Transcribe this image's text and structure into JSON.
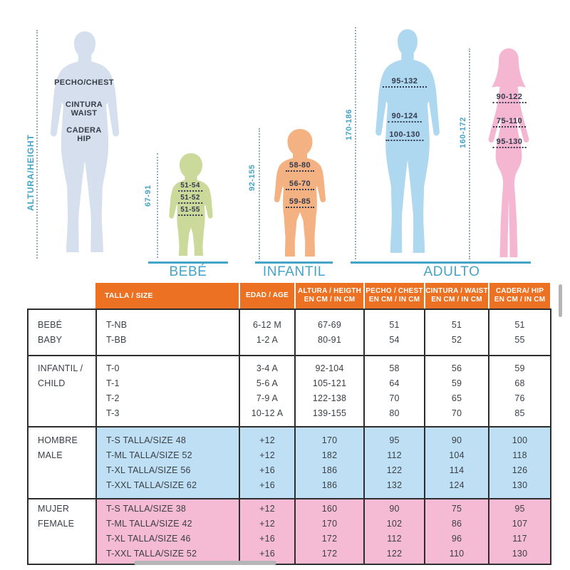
{
  "colors": {
    "teal": "#43a4c7",
    "header_orange": "#ec7123",
    "male_row_blue": "#bfe0f4",
    "female_row_pink": "#f5bad4",
    "reference_silhouette": "#d6dfed",
    "baby_silhouette": "#cbd99a",
    "child_silhouette": "#f4b181",
    "adult_male_silhouette": "#aed7f0",
    "adult_female_silhouette": "#f5b6d1",
    "annotation_navy": "#333a4d",
    "table_border": "#2d2d2d",
    "dotted_line_gray": "#9aa9bd",
    "scrollbar_gray": "#b5b5b5"
  },
  "figures": {
    "height_axis_label": "ALTURA/HEIGHT",
    "reference": {
      "chest_label": "PECHO/CHEST",
      "waist_label_1": "CINTURA",
      "waist_label_2": "WAIST",
      "hip_label_1": "CADERA",
      "hip_label_2": "HIP"
    },
    "baby": {
      "height_range": "67-91",
      "chest": "51-54",
      "waist": "51-52",
      "hip": "51-55"
    },
    "child": {
      "height_range": "92-155",
      "chest": "58-80",
      "waist": "56-70",
      "hip": "59-85"
    },
    "adult_male": {
      "height_range": "170-186",
      "chest": "95-132",
      "waist": "90-124",
      "hip": "100-130"
    },
    "adult_female": {
      "height_range": "160-172",
      "chest": "90-122",
      "waist": "75-110",
      "hip": "95-130"
    }
  },
  "groups": {
    "baby_label": "BEBÉ",
    "child_label": "INFANTIL",
    "adult_label": "ADULTO"
  },
  "table": {
    "headers": [
      {
        "line1": "TALLA / SIZE",
        "line2": ""
      },
      {
        "line1": "EDAD / AGE",
        "line2": ""
      },
      {
        "line1": "ALTURA / HEIGTH",
        "line2": "EN CM / IN CM"
      },
      {
        "line1": "PECHO / CHEST",
        "line2": "EN CM / IN CM"
      },
      {
        "line1": "CINTURA / WAIST",
        "line2": "EN CM / IN CM"
      },
      {
        "line1": "CADERA/ HIP",
        "line2": "EN CM / IN CM"
      }
    ],
    "sections": [
      {
        "id": "baby",
        "category": [
          "BEBÉ",
          "BABY"
        ],
        "row_bg": "#ffffff",
        "height": 63,
        "rows": [
          [
            "T-NB",
            "6-12 M",
            "67-69",
            "51",
            "51",
            "51"
          ],
          [
            "T-BB",
            "1-2 A",
            "80-91",
            "54",
            "52",
            "55"
          ]
        ]
      },
      {
        "id": "child",
        "category": [
          "INFANTIL /",
          "CHILD"
        ],
        "row_bg": "#ffffff",
        "height": 100,
        "rows": [
          [
            "T-0",
            "3-4 A",
            "92-104",
            "58",
            "56",
            "59"
          ],
          [
            "T-1",
            "5-6 A",
            "105-121",
            "64",
            "59",
            "68"
          ],
          [
            "T-2",
            "7-9 A",
            "122-138",
            "70",
            "65",
            "76"
          ],
          [
            "T-3",
            "10-12 A",
            "139-155",
            "80",
            "70",
            "85"
          ]
        ]
      },
      {
        "id": "male",
        "category": [
          "HOMBRE",
          "MALE"
        ],
        "row_bg": "#bfe0f4",
        "height": 101,
        "rows": [
          [
            "T-S TALLA/SIZE 48",
            "+12",
            "170",
            "95",
            "90",
            "100"
          ],
          [
            "T-ML TALLA/SIZE 52",
            "+12",
            "182",
            "112",
            "104",
            "118"
          ],
          [
            "T-XL TALLA/SIZE 56",
            "+16",
            "186",
            "122",
            "114",
            "126"
          ],
          [
            "T-XXL TALLA/SIZE 62",
            "+16",
            "186",
            "132",
            "124",
            "130"
          ]
        ]
      },
      {
        "id": "female",
        "category": [
          "MUJER",
          "FEMALE"
        ],
        "row_bg": "#f5bad4",
        "height": 92,
        "rows": [
          [
            "T-S TALLA/SIZE 38",
            "+12",
            "160",
            "90",
            "75",
            "95"
          ],
          [
            "T-ML TALLA/SIZE 42",
            "+12",
            "170",
            "102",
            "86",
            "107"
          ],
          [
            "T-XL TALLA/SIZE 46",
            "+16",
            "172",
            "112",
            "96",
            "117"
          ],
          [
            "T-XXL TALLA/SIZE 52",
            "+16",
            "172",
            "122",
            "110",
            "130"
          ]
        ]
      }
    ]
  }
}
